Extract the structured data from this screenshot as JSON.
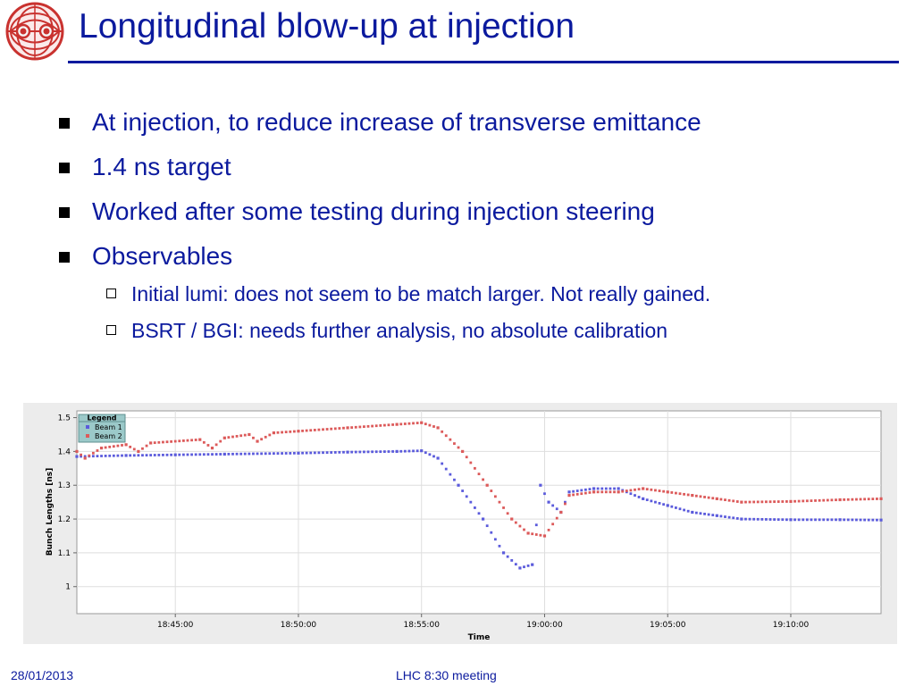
{
  "slide": {
    "title": "Longitudinal blow-up at injection",
    "bullets": [
      "At injection, to reduce increase of transverse emittance",
      "1.4 ns target",
      "Worked after some testing during injection steering",
      "Observables"
    ],
    "sub_bullets": [
      "Initial lumi: does not seem to be match larger. Not really gained.",
      "BSRT / BGI: needs further analysis, no absolute calibration"
    ],
    "footer": {
      "date": "28/01/2013",
      "meeting": "LHC 8:30 meeting"
    },
    "logo_icon": "lhc-logo-icon",
    "colors": {
      "title": "#0b1a9e",
      "beam1": "#5b5bdc",
      "beam2": "#dc5a5a",
      "legend_bg": "#9bc9c9"
    }
  },
  "chart_data": {
    "type": "scatter",
    "xlabel": "Time",
    "ylabel": "Bunch Lengths [ns]",
    "x_ticks": [
      "18:45:00",
      "18:50:00",
      "18:55:00",
      "19:00:00",
      "19:05:00",
      "19:10:00"
    ],
    "y_ticks": [
      "1",
      "1.1",
      "1.2",
      "1.3",
      "1.4",
      "1.5"
    ],
    "xlim": [
      "18:41:00",
      "19:13:40"
    ],
    "ylim": [
      0.92,
      1.52
    ],
    "grid": true,
    "legend": {
      "title": "Legend",
      "placement": "top-left"
    },
    "series": [
      {
        "name": "Beam 1",
        "color": "#5b5bdc",
        "points": [
          [
            "18:41:00",
            1.385
          ],
          [
            "18:43:00",
            1.388
          ],
          [
            "18:45:00",
            1.39
          ],
          [
            "18:47:00",
            1.392
          ],
          [
            "18:50:00",
            1.395
          ],
          [
            "18:52:00",
            1.398
          ],
          [
            "18:54:00",
            1.4
          ],
          [
            "18:55:00",
            1.402
          ],
          [
            "18:55:40",
            1.38
          ],
          [
            "18:56:30",
            1.3
          ],
          [
            "18:57:30",
            1.2
          ],
          [
            "18:58:20",
            1.1
          ],
          [
            "18:59:00",
            1.055
          ],
          [
            "18:59:30",
            1.065
          ],
          [
            "18:59:50",
            1.3
          ],
          [
            "19:00:10",
            1.25
          ],
          [
            "19:00:40",
            1.22
          ],
          [
            "19:01:00",
            1.28
          ],
          [
            "19:02:00",
            1.29
          ],
          [
            "19:03:00",
            1.29
          ],
          [
            "19:04:00",
            1.26
          ],
          [
            "19:05:00",
            1.24
          ],
          [
            "19:06:00",
            1.22
          ],
          [
            "19:07:00",
            1.21
          ],
          [
            "19:08:00",
            1.2
          ],
          [
            "19:10:00",
            1.198
          ],
          [
            "19:12:00",
            1.198
          ],
          [
            "19:13:40",
            1.197
          ]
        ]
      },
      {
        "name": "Beam 2",
        "color": "#dc5a5a",
        "points": [
          [
            "18:41:00",
            1.4
          ],
          [
            "18:41:20",
            1.38
          ],
          [
            "18:42:00",
            1.41
          ],
          [
            "18:43:00",
            1.42
          ],
          [
            "18:43:30",
            1.4
          ],
          [
            "18:44:00",
            1.425
          ],
          [
            "18:46:00",
            1.435
          ],
          [
            "18:46:30",
            1.41
          ],
          [
            "18:47:00",
            1.44
          ],
          [
            "18:48:00",
            1.45
          ],
          [
            "18:48:20",
            1.43
          ],
          [
            "18:49:00",
            1.455
          ],
          [
            "18:50:00",
            1.46
          ],
          [
            "18:52:00",
            1.47
          ],
          [
            "18:54:00",
            1.48
          ],
          [
            "18:55:00",
            1.485
          ],
          [
            "18:55:40",
            1.47
          ],
          [
            "18:56:40",
            1.4
          ],
          [
            "18:57:40",
            1.3
          ],
          [
            "18:58:40",
            1.2
          ],
          [
            "18:59:20",
            1.158
          ],
          [
            "19:00:00",
            1.15
          ],
          [
            "19:00:40",
            1.22
          ],
          [
            "19:01:00",
            1.27
          ],
          [
            "19:02:00",
            1.28
          ],
          [
            "19:03:00",
            1.28
          ],
          [
            "19:04:00",
            1.29
          ],
          [
            "19:05:00",
            1.28
          ],
          [
            "19:06:00",
            1.27
          ],
          [
            "19:07:00",
            1.26
          ],
          [
            "19:08:00",
            1.25
          ],
          [
            "19:10:00",
            1.252
          ],
          [
            "19:12:00",
            1.257
          ],
          [
            "19:13:40",
            1.26
          ]
        ]
      }
    ]
  }
}
